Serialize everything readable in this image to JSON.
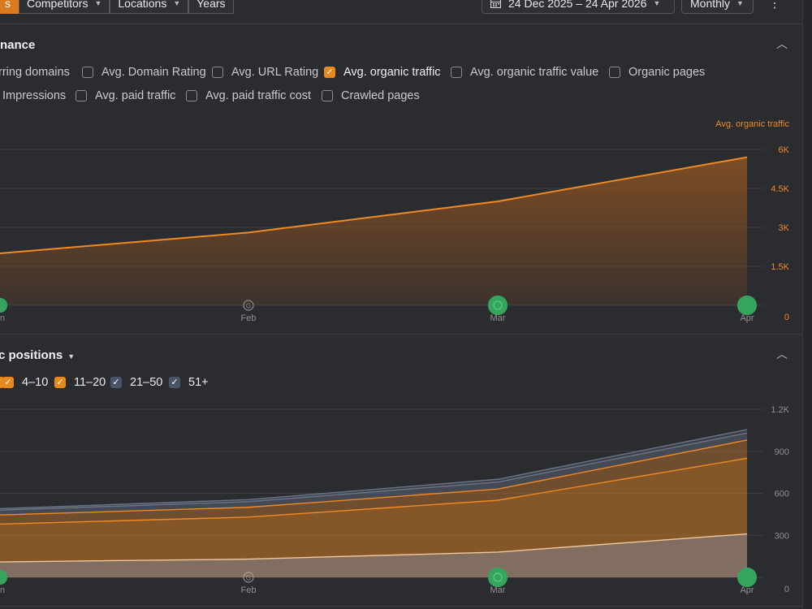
{
  "toolbar": {
    "tabs": [
      {
        "label": "s",
        "active": true
      },
      {
        "label": "Competitors",
        "chevron": true
      },
      {
        "label": "Locations",
        "chevron": true
      },
      {
        "label": "Years"
      }
    ],
    "date_range": "24 Dec 2025 – 24 Apr 2026",
    "interval": "Monthly",
    "more_icon": "more-vertical-icon"
  },
  "performance": {
    "title": "nance",
    "collapse_icon": "chevron-up-icon",
    "metrics_row1": [
      {
        "label": "rring domains",
        "checked": null
      },
      {
        "label": "Avg. Domain Rating",
        "checked": false
      },
      {
        "label": "Avg. URL Rating",
        "checked": false
      },
      {
        "label": "Avg. organic traffic",
        "checked": true
      },
      {
        "label": "Avg. organic traffic value",
        "checked": false
      },
      {
        "label": "Organic pages",
        "checked": false
      }
    ],
    "metrics_row2": [
      {
        "label": "Impressions",
        "checked": null
      },
      {
        "label": "Avg. paid traffic",
        "checked": false
      },
      {
        "label": "Avg. paid traffic cost",
        "checked": false
      },
      {
        "label": "Crawled pages",
        "checked": false
      }
    ]
  },
  "positions": {
    "title": "c positions",
    "chevron_icon": "chevron-down-icon",
    "collapse_icon": "chevron-up-icon",
    "filters": [
      {
        "label": "",
        "checked": true,
        "color": "#e8891e"
      },
      {
        "label": "4–10",
        "checked": true,
        "color": "#e8891e"
      },
      {
        "label": "11–20",
        "checked": true,
        "color": "#e8891e"
      },
      {
        "label": "21–50",
        "checked": true,
        "color": "#4a5468"
      },
      {
        "label": "51+",
        "checked": true,
        "color": "#4a5468"
      }
    ]
  },
  "chart_data": [
    {
      "type": "area",
      "series": [
        {
          "name": "Avg. organic traffic",
          "color": "#f08a24",
          "x": [
            "Jan",
            "Feb",
            "Mar",
            "Apr"
          ],
          "values": [
            2000,
            2800,
            4000,
            5700
          ]
        }
      ],
      "x_labels": [
        "an",
        "Feb",
        "Mar",
        "Apr"
      ],
      "y_axis_title": "Avg. organic traffic",
      "y_ticks": [
        "6K",
        "4.5K",
        "3K",
        "1.5K",
        "0"
      ],
      "ylim": [
        0,
        6000
      ],
      "annotation_markers": [
        {
          "x": "Jan",
          "kind": "filled"
        },
        {
          "x": "Feb",
          "kind": "google-update-icon"
        },
        {
          "x": "Mar",
          "kind": "filled-ring"
        },
        {
          "x": "Apr",
          "kind": "filled"
        }
      ],
      "grid": true
    },
    {
      "type": "area",
      "stacked": true,
      "x": [
        "Jan",
        "Feb",
        "Mar",
        "Apr"
      ],
      "x_labels": [
        "an",
        "Feb",
        "Mar",
        "Apr"
      ],
      "series": [
        {
          "name": "",
          "color": "#c9a58a",
          "values": [
            110,
            130,
            180,
            310
          ]
        },
        {
          "name": "4–10",
          "color": "#d07a22",
          "values": [
            270,
            300,
            370,
            540
          ]
        },
        {
          "name": "11–20",
          "color": "#a86a2c",
          "values": [
            65,
            70,
            80,
            130
          ]
        },
        {
          "name": "21–50",
          "color": "#5a6272",
          "values": [
            35,
            40,
            50,
            50
          ]
        },
        {
          "name": "51+",
          "color": "#4b5260",
          "values": [
            10,
            15,
            20,
            25
          ]
        }
      ],
      "y_ticks": [
        "1.2K",
        "900",
        "600",
        "300",
        "0"
      ],
      "ylim": [
        0,
        1200
      ],
      "annotation_markers": [
        {
          "x": "Jan",
          "kind": "filled"
        },
        {
          "x": "Feb",
          "kind": "google-update-icon"
        },
        {
          "x": "Mar",
          "kind": "filled-ring"
        },
        {
          "x": "Apr",
          "kind": "filled"
        }
      ],
      "grid": true
    }
  ]
}
